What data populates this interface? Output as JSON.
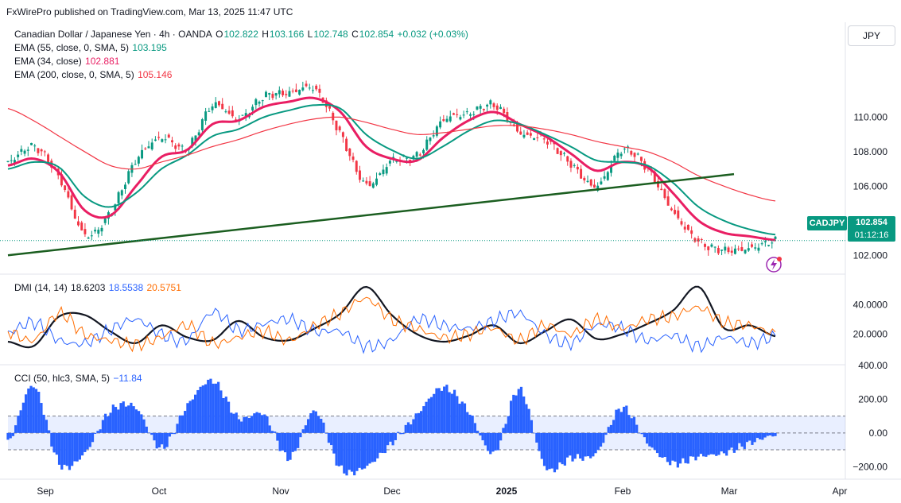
{
  "publisher": "FxWirePro published on TradingView.com, Mar 13, 2025 11:47 UTC",
  "currency_button": "JPY",
  "symbol_tag": "CADJPY",
  "last_price": "102.854",
  "countdown": "01:12:16",
  "colors": {
    "up": "#089981",
    "down": "#f23645",
    "ema55": "#089981",
    "ema34": "#e91e63",
    "ema200": "#f23645",
    "trendline": "#1b5e20",
    "dmi_adx": "#131722",
    "dmi_plus": "#2962ff",
    "dmi_minus": "#ff6d00",
    "cci": "#2962ff"
  },
  "legend_main": {
    "title": "Canadian Dollar / Japanese Yen · 4h · OANDA",
    "o_label": "O",
    "o_value": "102.822",
    "h_label": "H",
    "h_value": "103.166",
    "l_label": "L",
    "l_value": "102.748",
    "c_label": "C",
    "c_value": "102.854",
    "change": "+0.032 (+0.03%)",
    "ema55_label": "EMA (55, close, 0, SMA, 5)",
    "ema55_value": "103.195",
    "ema34_label": "EMA (34, close)",
    "ema34_value": "102.881",
    "ema200_label": "EMA (200, close, 0, SMA, 5)",
    "ema200_value": "105.146"
  },
  "legend_dmi": {
    "label": "DMI (14, 14)",
    "adx": "18.6203",
    "plus_di": "18.5538",
    "minus_di": "20.5751"
  },
  "legend_cci": {
    "label": "CCI (50, hlc3, SMA, 5)",
    "value": "−11.84"
  },
  "chart_data": [
    {
      "type": "line",
      "name": "price",
      "price_axis_ticks": [
        "110.000",
        "108.000",
        "106.000",
        "104.000",
        "102.000"
      ],
      "ylim": [
        101.0,
        115.5
      ],
      "time_axis_labels": [
        "Sep",
        "Oct",
        "Nov",
        "Dec",
        "2025",
        "Feb",
        "Mar",
        "Apr"
      ],
      "x": [
        "Aug 24",
        "Sep 1",
        "Sep 10",
        "Sep 17",
        "Sep 25",
        "Oct 1",
        "Oct 7",
        "Oct 15",
        "Oct 23",
        "Oct 30",
        "Nov 6",
        "Nov 13",
        "Nov 18",
        "Nov 25",
        "Dec 2",
        "Dec 9",
        "Dec 16",
        "Dec 24",
        "Jan 1",
        "Jan 8",
        "Jan 15",
        "Jan 23",
        "Jan 30",
        "Feb 6",
        "Feb 12",
        "Feb 17",
        "Feb 24",
        "Mar 3",
        "Mar 7",
        "Mar 11",
        "Mar 13"
      ],
      "series": [
        {
          "values": [
            107.4,
            108.3,
            106.5,
            103.2,
            104.5,
            107.5,
            108.8,
            108.2,
            110.7,
            109.9,
            111.2,
            111.4,
            111.6,
            109.0,
            106.1,
            107.5,
            107.8,
            109.8,
            110.2,
            110.7,
            109.1,
            108.7,
            107.3,
            106.0,
            108.1,
            107.0,
            104.5,
            102.8,
            102.3,
            102.4,
            102.854
          ]
        },
        {
          "values": [
            107.2,
            107.6,
            106.8,
            104.6,
            104.3,
            106.0,
            107.7,
            108.1,
            109.6,
            109.8,
            110.6,
            110.9,
            111.1,
            110.3,
            108.3,
            107.6,
            107.5,
            108.8,
            109.8,
            110.3,
            109.6,
            108.9,
            107.9,
            106.9,
            107.4,
            107.1,
            105.6,
            104.0,
            103.3,
            103.1,
            102.881
          ]
        },
        {
          "values": [
            107.0,
            107.4,
            107.1,
            105.4,
            104.8,
            105.6,
            107.0,
            107.8,
            108.9,
            109.3,
            110.0,
            110.4,
            110.7,
            110.5,
            109.0,
            108.1,
            107.6,
            108.3,
            109.2,
            109.8,
            109.6,
            109.0,
            108.3,
            107.5,
            107.4,
            107.2,
            106.2,
            104.8,
            104.0,
            103.5,
            103.195
          ]
        },
        {
          "values": [
            110.5,
            109.8,
            108.9,
            108.0,
            107.2,
            107.0,
            107.4,
            107.8,
            108.3,
            108.7,
            109.2,
            109.6,
            109.9,
            110.0,
            109.7,
            109.3,
            109.0,
            109.1,
            109.3,
            109.5,
            109.5,
            109.3,
            109.0,
            108.6,
            108.3,
            108.0,
            107.4,
            106.6,
            106.0,
            105.5,
            105.146
          ]
        }
      ],
      "trendline": {
        "x": [
          "Aug 24",
          "Feb 24"
        ],
        "y": [
          102.0,
          106.7
        ]
      },
      "last_price_line": 102.854
    },
    {
      "type": "line",
      "name": "dmi",
      "axis_ticks": [
        "40.0000",
        "20.0000"
      ],
      "ylim": [
        0,
        60
      ],
      "x": [
        "Aug 24",
        "Sep 1",
        "Sep 10",
        "Sep 17",
        "Sep 25",
        "Oct 1",
        "Oct 7",
        "Oct 15",
        "Oct 23",
        "Oct 30",
        "Nov 6",
        "Nov 13",
        "Nov 18",
        "Nov 25",
        "Dec 2",
        "Dec 9",
        "Dec 16",
        "Dec 24",
        "Jan 1",
        "Jan 8",
        "Jan 15",
        "Jan 23",
        "Jan 30",
        "Feb 6",
        "Feb 12",
        "Feb 17",
        "Feb 24",
        "Mar 3",
        "Mar 7",
        "Mar 11",
        "Mar 13"
      ],
      "series": [
        {
          "values": [
            15,
            12,
            32,
            33,
            22,
            14,
            26,
            18,
            16,
            29,
            18,
            16,
            24,
            34,
            52,
            33,
            20,
            15,
            19,
            26,
            14,
            22,
            30,
            17,
            20,
            27,
            36,
            52,
            24,
            26,
            18.6203
          ]
        },
        {
          "values": [
            21,
            28,
            16,
            14,
            23,
            30,
            20,
            16,
            35,
            23,
            27,
            30,
            22,
            22,
            12,
            16,
            30,
            26,
            24,
            29,
            34,
            20,
            14,
            26,
            24,
            16,
            19,
            12,
            18,
            14,
            18.5538
          ]
        },
        {
          "values": [
            22,
            16,
            34,
            20,
            16,
            13,
            18,
            26,
            14,
            18,
            22,
            16,
            26,
            34,
            44,
            30,
            24,
            18,
            20,
            24,
            16,
            26,
            20,
            30,
            24,
            30,
            32,
            38,
            28,
            26,
            20.5751
          ]
        }
      ]
    },
    {
      "type": "bar",
      "name": "cci",
      "axis_ticks": [
        "400.00",
        "200.00",
        "0.00",
        "−200.00"
      ],
      "ylim": [
        -260,
        400
      ],
      "band": [
        -100,
        100
      ],
      "x": [
        "Aug 24",
        "Sep 1",
        "Sep 10",
        "Sep 17",
        "Sep 25",
        "Oct 1",
        "Oct 7",
        "Oct 15",
        "Oct 23",
        "Oct 30",
        "Nov 6",
        "Nov 13",
        "Nov 18",
        "Nov 25",
        "Dec 2",
        "Dec 9",
        "Dec 16",
        "Dec 24",
        "Jan 1",
        "Jan 8",
        "Jan 15",
        "Jan 23",
        "Jan 30",
        "Feb 6",
        "Feb 12",
        "Feb 17",
        "Feb 24",
        "Mar 3",
        "Mar 7",
        "Mar 11",
        "Mar 13"
      ],
      "values": [
        -60,
        280,
        -180,
        -120,
        130,
        150,
        -90,
        160,
        310,
        90,
        110,
        -150,
        130,
        -210,
        -200,
        -60,
        110,
        270,
        130,
        -120,
        260,
        -200,
        -150,
        -120,
        150,
        -60,
        -180,
        -140,
        -120,
        -60,
        -11.84
      ]
    }
  ]
}
